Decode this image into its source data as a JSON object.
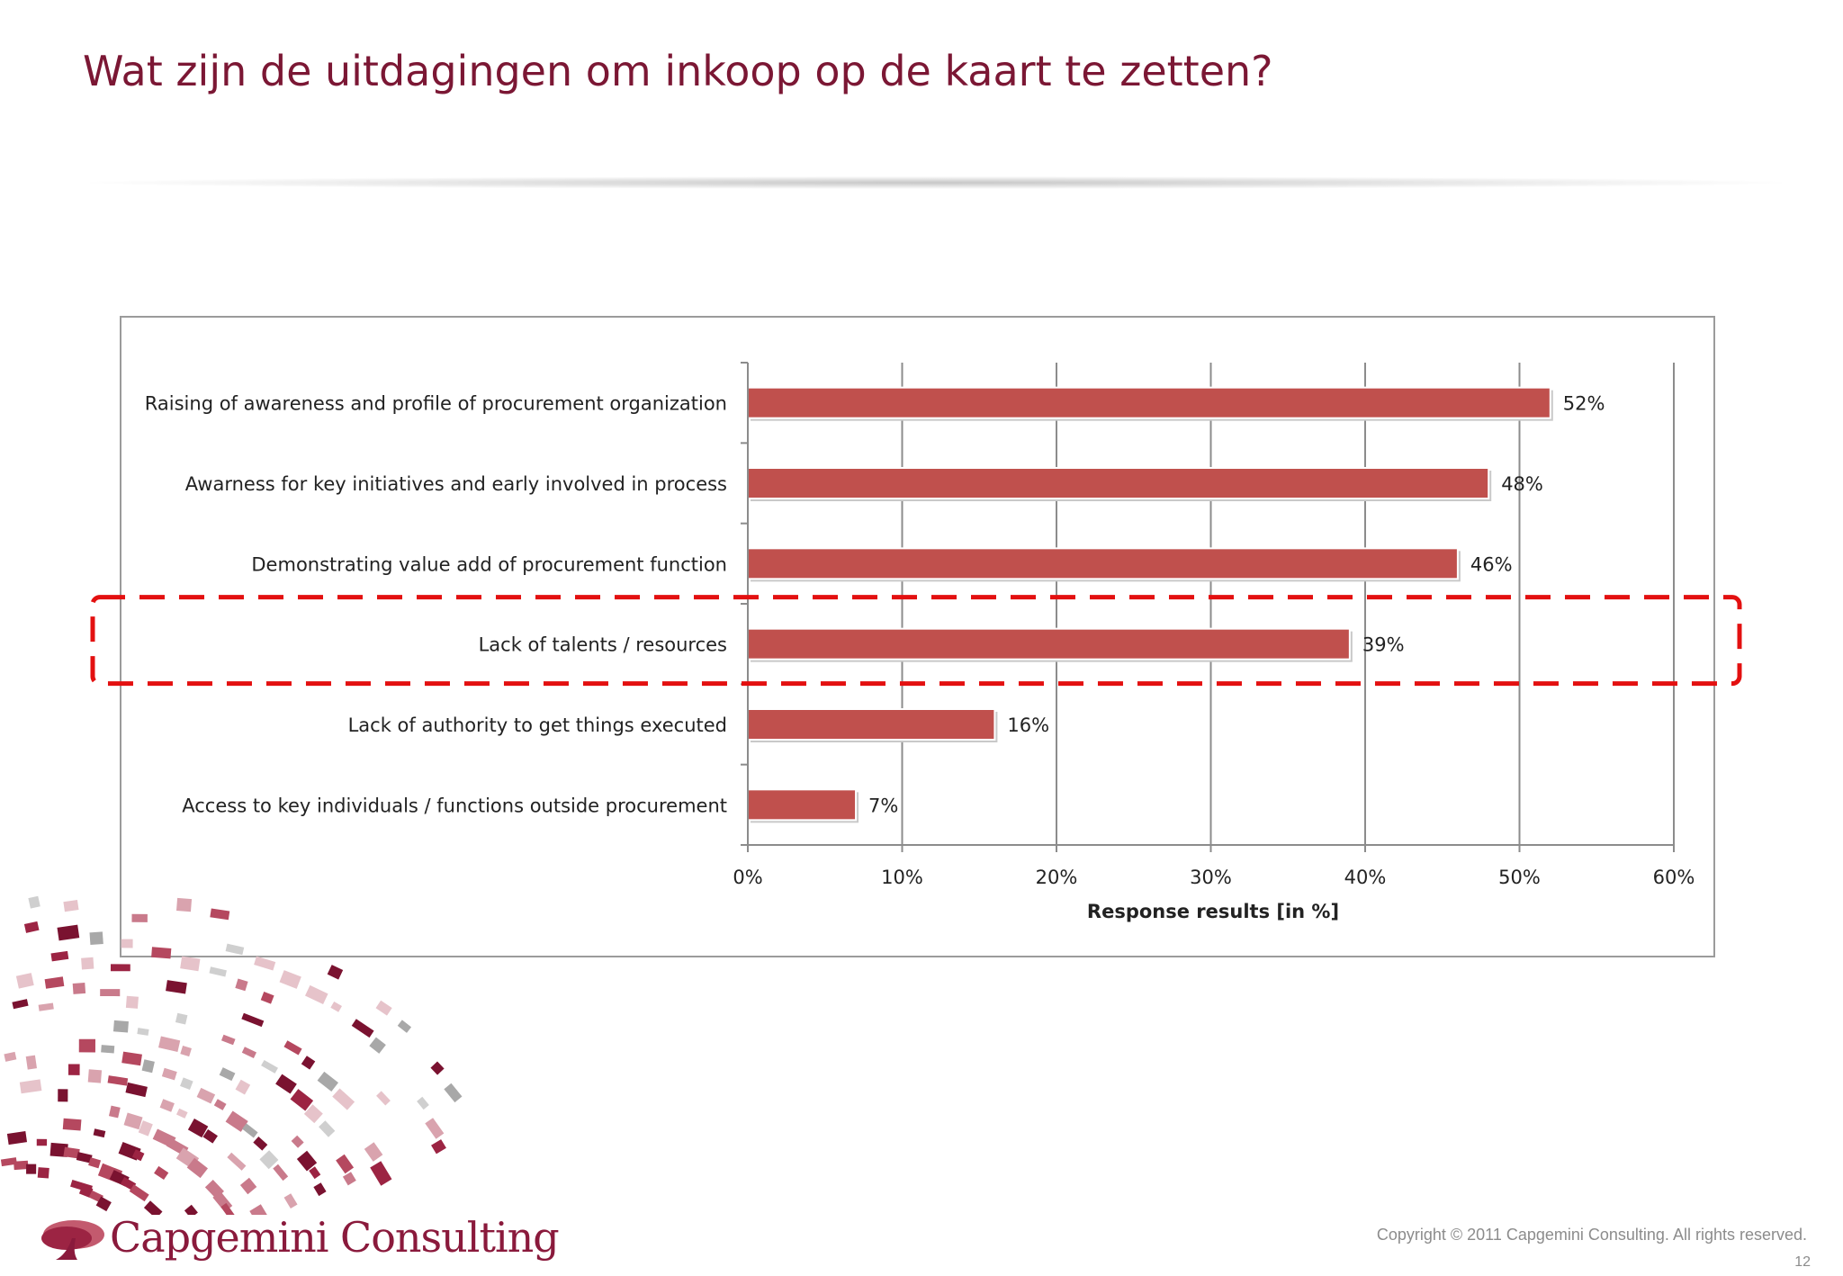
{
  "slide": {
    "title": "Wat zijn de uitdagingen om inkoop op de kaart te zetten?",
    "copyright": "Copyright © 2011 Capgemini Consulting. All rights reserved.",
    "page_number": "12",
    "logo_text": "Capgemini Consulting"
  },
  "colors": {
    "title": "#7b1734",
    "bar": "#c0504d",
    "highlight": "#e31010",
    "grid": "#8c8c8c",
    "logo": "#8a1a3c"
  },
  "chart_data": {
    "type": "bar",
    "orientation": "horizontal",
    "categories": [
      "Raising of awareness and profile of procurement organization",
      "Awarness for key initiatives and early involved in process",
      "Demonstrating value add of procurement function",
      "Lack of talents / resources",
      "Lack of authority to get things executed",
      "Access to key individuals / functions outside procurement"
    ],
    "values": [
      52,
      48,
      46,
      39,
      16,
      7
    ],
    "value_labels": [
      "52%",
      "48%",
      "46%",
      "39%",
      "16%",
      "7%"
    ],
    "xlabel": "Response results [in %]",
    "ylabel": "",
    "xlim": [
      0,
      60
    ],
    "xticks": [
      0,
      10,
      20,
      30,
      40,
      50,
      60
    ],
    "xtick_labels": [
      "0%",
      "10%",
      "20%",
      "30%",
      "40%",
      "50%",
      "60%"
    ],
    "grid": "vertical",
    "legend": "none",
    "highlighted_category": "Lack of talents / resources"
  }
}
